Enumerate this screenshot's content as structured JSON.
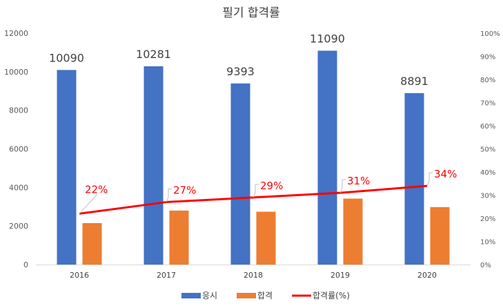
{
  "chart_data": {
    "type": "bar",
    "title": "필기 합격률",
    "categories": [
      "2016",
      "2017",
      "2018",
      "2019",
      "2020"
    ],
    "series": [
      {
        "name": "응시",
        "axis": "left",
        "color": "#4472c4",
        "values": [
          10090,
          10281,
          9393,
          11090,
          8891
        ]
      },
      {
        "name": "합격",
        "axis": "left",
        "color": "#ed7d31",
        "values": [
          2150,
          2800,
          2740,
          3420,
          2980
        ]
      },
      {
        "name": "합격률(%)",
        "type": "line",
        "axis": "right",
        "color": "#ff0000",
        "values": [
          22,
          27,
          29,
          31,
          34
        ]
      }
    ],
    "data_labels": {
      "응시": [
        "10090",
        "10281",
        "9393",
        "11090",
        "8891"
      ],
      "합격률(%)": [
        "22%",
        "27%",
        "29%",
        "31%",
        "34%"
      ]
    },
    "y_left": {
      "min": 0,
      "max": 12000,
      "step": 2000,
      "ticks": [
        "0",
        "2000",
        "4000",
        "6000",
        "8000",
        "10000",
        "12000"
      ]
    },
    "y_right": {
      "min": 0,
      "max": 100,
      "step": 10,
      "ticks": [
        "0%",
        "10%",
        "20%",
        "30%",
        "40%",
        "50%",
        "60%",
        "70%",
        "80%",
        "90%",
        "100%"
      ]
    },
    "grid": false,
    "legend": "bottom"
  }
}
